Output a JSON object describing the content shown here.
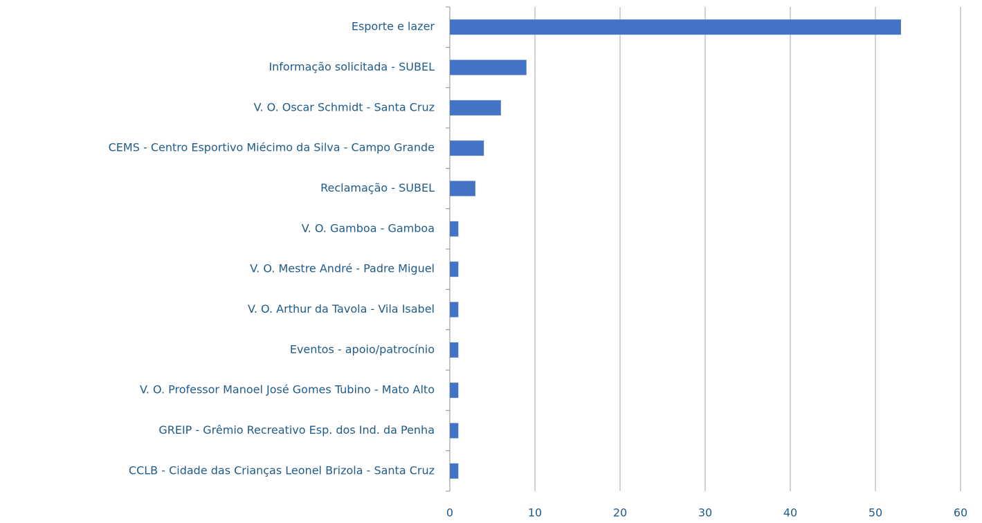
{
  "chart_data": {
    "type": "bar",
    "orientation": "horizontal",
    "categories": [
      "Esporte e lazer",
      "Informação solicitada - SUBEL",
      "V. O. Oscar Schmidt - Santa Cruz",
      "CEMS - Centro Esportivo Miécimo da Silva - Campo Grande",
      "Reclamação - SUBEL",
      "V. O. Gamboa - Gamboa",
      "V. O. Mestre André - Padre Miguel",
      "V. O. Arthur da Tavola - Vila Isabel",
      "Eventos - apoio/patrocínio",
      "V. O. Professor Manoel José Gomes Tubino - Mato Alto",
      "GREIP - Grêmio Recreativo Esp. dos Ind. da Penha",
      "CCLB - Cidade das Crianças Leonel Brizola - Santa Cruz"
    ],
    "values": [
      53,
      9,
      6,
      4,
      3,
      1,
      1,
      1,
      1,
      1,
      1,
      1
    ],
    "color": "#4472c4",
    "xlim": [
      0,
      60
    ],
    "xticks": [
      0,
      10,
      20,
      30,
      40,
      50,
      60
    ],
    "grid": true
  }
}
